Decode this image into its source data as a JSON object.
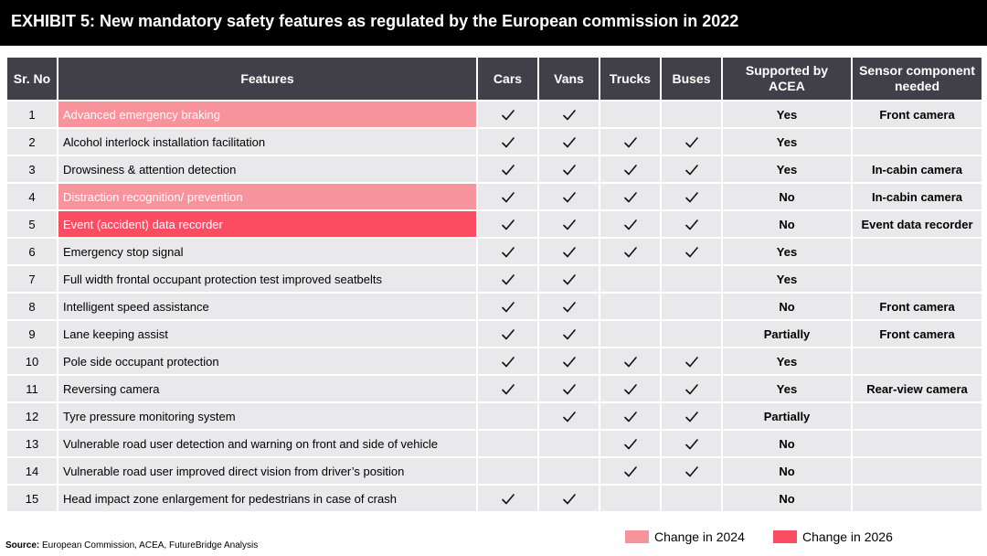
{
  "title": "EXHIBIT 5: New mandatory safety features as regulated by the European commission in 2022",
  "headers": {
    "sr": "Sr. No",
    "features": "Features",
    "cars": "Cars",
    "vans": "Vans",
    "trucks": "Trucks",
    "buses": "Buses",
    "acea_line1": "Supported by",
    "acea_line2": "ACEA",
    "sensor_line1": "Sensor component",
    "sensor_line2": "needed"
  },
  "rows": [
    {
      "sr": "1",
      "feature": "Advanced emergency braking",
      "change": "2024",
      "cars": true,
      "vans": true,
      "trucks": false,
      "buses": false,
      "acea": "Yes",
      "sensor": "Front camera"
    },
    {
      "sr": "2",
      "feature": "Alcohol interlock installation facilitation",
      "change": "",
      "cars": true,
      "vans": true,
      "trucks": true,
      "buses": true,
      "acea": "Yes",
      "sensor": ""
    },
    {
      "sr": "3",
      "feature": "Drowsiness & attention detection",
      "change": "",
      "cars": true,
      "vans": true,
      "trucks": true,
      "buses": true,
      "acea": "Yes",
      "sensor": "In-cabin camera"
    },
    {
      "sr": "4",
      "feature": "Distraction recognition/ prevention",
      "change": "2024",
      "cars": true,
      "vans": true,
      "trucks": true,
      "buses": true,
      "acea": "No",
      "sensor": "In-cabin camera"
    },
    {
      "sr": "5",
      "feature": "Event (accident) data recorder",
      "change": "2026",
      "cars": true,
      "vans": true,
      "trucks": true,
      "buses": true,
      "acea": "No",
      "sensor": "Event data recorder"
    },
    {
      "sr": "6",
      "feature": "Emergency stop signal",
      "change": "",
      "cars": true,
      "vans": true,
      "trucks": true,
      "buses": true,
      "acea": "Yes",
      "sensor": ""
    },
    {
      "sr": "7",
      "feature": "Full width frontal occupant protection test improved seatbelts",
      "change": "",
      "cars": true,
      "vans": true,
      "trucks": false,
      "buses": false,
      "acea": "Yes",
      "sensor": ""
    },
    {
      "sr": "8",
      "feature": "Intelligent speed assistance",
      "change": "",
      "cars": true,
      "vans": true,
      "trucks": false,
      "buses": false,
      "acea": "No",
      "sensor": "Front camera"
    },
    {
      "sr": "9",
      "feature": "Lane keeping assist",
      "change": "",
      "cars": true,
      "vans": true,
      "trucks": false,
      "buses": false,
      "acea": "Partially",
      "sensor": "Front camera"
    },
    {
      "sr": "10",
      "feature": "Pole side occupant protection",
      "change": "",
      "cars": true,
      "vans": true,
      "trucks": true,
      "buses": true,
      "acea": "Yes",
      "sensor": ""
    },
    {
      "sr": "11",
      "feature": "Reversing camera",
      "change": "",
      "cars": true,
      "vans": true,
      "trucks": true,
      "buses": true,
      "acea": "Yes",
      "sensor": "Rear-view camera"
    },
    {
      "sr": "12",
      "feature": "Tyre pressure monitoring system",
      "change": "",
      "cars": false,
      "vans": true,
      "trucks": true,
      "buses": true,
      "acea": "Partially",
      "sensor": ""
    },
    {
      "sr": "13",
      "feature": "Vulnerable road user detection and warning on front and side of vehicle",
      "change": "",
      "cars": false,
      "vans": false,
      "trucks": true,
      "buses": true,
      "acea": "No",
      "sensor": ""
    },
    {
      "sr": "14",
      "feature": "Vulnerable road user improved direct vision from driver’s position",
      "change": "",
      "cars": false,
      "vans": false,
      "trucks": true,
      "buses": true,
      "acea": "No",
      "sensor": ""
    },
    {
      "sr": "15",
      "feature": "Head impact zone enlargement for pedestrians in case of crash",
      "change": "",
      "cars": true,
      "vans": true,
      "trucks": false,
      "buses": false,
      "acea": "No",
      "sensor": ""
    }
  ],
  "legend": [
    {
      "label": "Change in 2024",
      "color": "#f7939b"
    },
    {
      "label": "Change in 2026",
      "color": "#fb4d62"
    }
  ],
  "source": {
    "label": "Source:",
    "text": "European Commission, ACEA, FutureBridge Analysis"
  },
  "icons": {
    "check": "checkmark-icon"
  }
}
